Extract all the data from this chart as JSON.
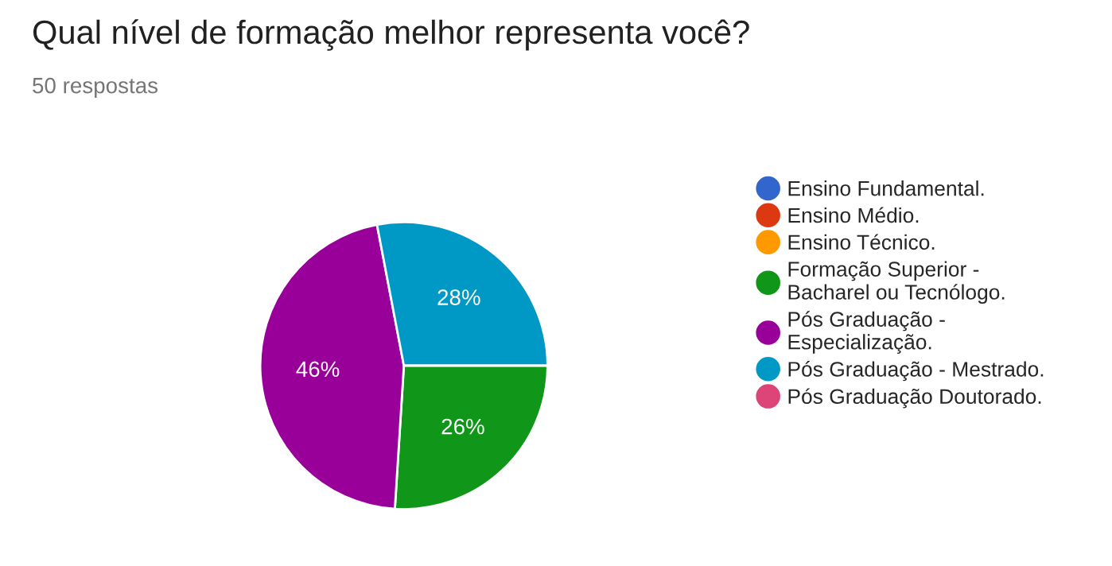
{
  "chart_data": {
    "type": "pie",
    "title": "Qual nível de formação melhor representa você?",
    "subtitle": "50 respostas",
    "categories": [
      "Ensino Fundamental.",
      "Ensino Médio.",
      "Ensino Técnico.",
      "Formação Superior -\nBacharel ou Tecnólogo.",
      "Pós Graduação -\nEspecialização.",
      "Pós Graduação - Mestrado.",
      "Pós Graduação Doutorado."
    ],
    "values": [
      0,
      0,
      0,
      26,
      46,
      28,
      0
    ],
    "value_labels": [
      null,
      null,
      null,
      "26%",
      "46%",
      "28%",
      null
    ],
    "colors": [
      "#3366cc",
      "#dc3912",
      "#ff9900",
      "#109618",
      "#990099",
      "#0099c6",
      "#dd4477"
    ],
    "legend": "right"
  }
}
